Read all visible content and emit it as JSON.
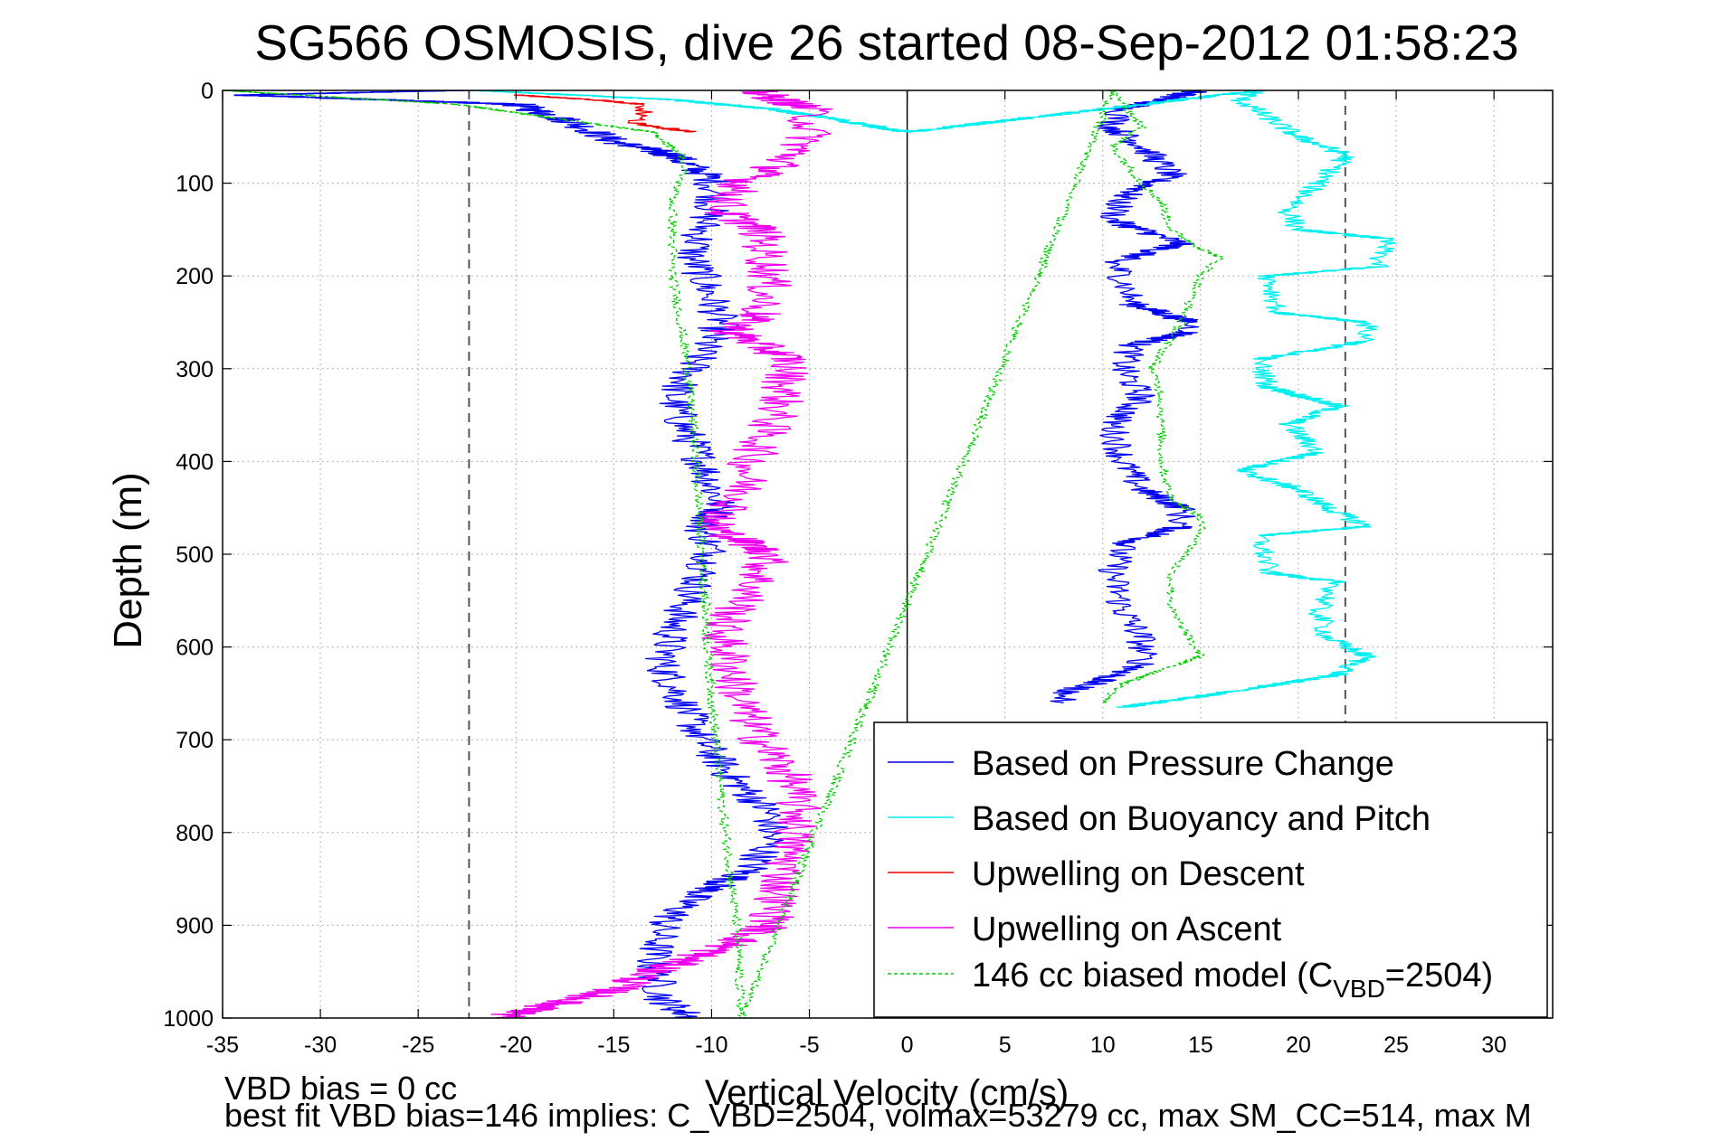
{
  "chart_data": {
    "type": "line",
    "title": "SG566 OSMOSIS, dive 26 started 08-Sep-2012 01:58:23",
    "xlabel": "Vertical Velocity (cm/s)",
    "ylabel": "Depth (m)",
    "xlim": [
      -35,
      33
    ],
    "ylim": [
      0,
      1000
    ],
    "y_reversed": true,
    "xticks": [
      -35,
      -30,
      -25,
      -20,
      -15,
      -10,
      -5,
      0,
      5,
      10,
      15,
      20,
      25,
      30
    ],
    "yticks": [
      0,
      100,
      200,
      300,
      400,
      500,
      600,
      700,
      800,
      900,
      1000
    ],
    "grid": true,
    "legend_position": "bottom-right",
    "reference_lines": [
      {
        "orientation": "vertical",
        "x": -22.4,
        "style": "dashed",
        "color": "#555555"
      },
      {
        "orientation": "vertical",
        "x": 22.4,
        "style": "dashed",
        "color": "#555555"
      },
      {
        "orientation": "vertical",
        "x": 0,
        "style": "solid",
        "color": "#000000"
      }
    ],
    "series": [
      {
        "name": "Based on Pressure Change",
        "color": "#0000ee",
        "style": "solid",
        "noise": 1.0,
        "points": [
          [
            -23,
            0
          ],
          [
            -34,
            5
          ],
          [
            -20,
            15
          ],
          [
            -17,
            35
          ],
          [
            -15,
            55
          ],
          [
            -12,
            70
          ],
          [
            -10,
            95
          ],
          [
            -9.8,
            115
          ],
          [
            -10.5,
            150
          ],
          [
            -11,
            180
          ],
          [
            -10.5,
            200
          ],
          [
            -9.5,
            250
          ],
          [
            -10.5,
            280
          ],
          [
            -11,
            300
          ],
          [
            -12,
            330
          ],
          [
            -11.5,
            360
          ],
          [
            -10.5,
            400
          ],
          [
            -9.5,
            450
          ],
          [
            -10.5,
            470
          ],
          [
            -10,
            500
          ],
          [
            -11,
            540
          ],
          [
            -12,
            580
          ],
          [
            -12.5,
            620
          ],
          [
            -11.5,
            660
          ],
          [
            -10.5,
            700
          ],
          [
            -9,
            740
          ],
          [
            -7,
            780
          ],
          [
            -7,
            810
          ],
          [
            -8,
            840
          ],
          [
            -11,
            870
          ],
          [
            -12.5,
            900
          ],
          [
            -13,
            940
          ],
          [
            -12.5,
            980
          ],
          [
            -11,
            1000
          ]
        ]
      },
      {
        "name": "Based on Pressure Change",
        "color": "#0000ee",
        "style": "solid",
        "noise": 0.8,
        "points": [
          [
            15,
            0
          ],
          [
            11,
            20
          ],
          [
            10.5,
            40
          ],
          [
            12,
            60
          ],
          [
            13.5,
            90
          ],
          [
            11,
            115
          ],
          [
            10.5,
            140
          ],
          [
            14,
            165
          ],
          [
            10.5,
            185
          ],
          [
            11,
            200
          ],
          [
            11.5,
            230
          ],
          [
            14.5,
            250
          ],
          [
            14.5,
            260
          ],
          [
            11.5,
            275
          ],
          [
            11,
            300
          ],
          [
            12,
            330
          ],
          [
            10.5,
            360
          ],
          [
            11,
            400
          ],
          [
            12,
            430
          ],
          [
            14,
            450
          ],
          [
            14,
            470
          ],
          [
            11,
            490
          ],
          [
            10.5,
            520
          ],
          [
            11,
            560
          ],
          [
            12,
            590
          ],
          [
            12,
            620
          ],
          [
            8,
            650
          ],
          [
            8,
            660
          ]
        ]
      },
      {
        "name": "Based on Pressure Change",
        "color": "#0000ee",
        "style": "solid",
        "noise": 0.5,
        "points": [
          [
            12,
            990
          ],
          [
            14,
            994
          ],
          [
            15,
            998
          ]
        ]
      },
      {
        "name": "Based on Buoyancy and Pitch",
        "color": "#00eeee",
        "style": "solid",
        "noise": 0.6,
        "points": [
          [
            -22,
            0
          ],
          [
            -12,
            10
          ],
          [
            -7,
            20
          ],
          [
            -4,
            30
          ],
          [
            0,
            45
          ],
          [
            18,
            0
          ],
          [
            17,
            10
          ],
          [
            18.5,
            30
          ],
          [
            20,
            50
          ],
          [
            22.5,
            70
          ],
          [
            21,
            100
          ],
          [
            19.5,
            130
          ],
          [
            20,
            150
          ],
          [
            24.5,
            160
          ],
          [
            24,
            190
          ],
          [
            18.5,
            200
          ],
          [
            19,
            240
          ],
          [
            23.5,
            250
          ],
          [
            23.5,
            270
          ],
          [
            18,
            290
          ],
          [
            18.5,
            320
          ],
          [
            22,
            340
          ],
          [
            19.5,
            360
          ],
          [
            21,
            390
          ],
          [
            17,
            410
          ],
          [
            20,
            430
          ],
          [
            21.5,
            450
          ],
          [
            23.5,
            470
          ],
          [
            18,
            480
          ],
          [
            18.5,
            520
          ],
          [
            22,
            530
          ],
          [
            21,
            560
          ],
          [
            21.5,
            590
          ],
          [
            23.5,
            610
          ],
          [
            22,
            630
          ],
          [
            16,
            650
          ],
          [
            11,
            665
          ]
        ]
      },
      {
        "name": "Based on Buoyancy and Pitch",
        "color": "#00eeee",
        "style": "solid",
        "noise": 0.4,
        "points": [
          [
            28,
            985
          ],
          [
            29,
            992
          ],
          [
            31,
            1000
          ]
        ]
      },
      {
        "name": "Upwelling on Descent",
        "color": "#ee0000",
        "style": "solid",
        "noise": 0.5,
        "points": [
          [
            -20,
            5
          ],
          [
            -16,
            10
          ],
          [
            -13.5,
            15
          ],
          [
            -13.5,
            25
          ],
          [
            -14,
            35
          ],
          [
            -11,
            45
          ]
        ]
      },
      {
        "name": "Upwelling on Ascent",
        "color": "#ee00ee",
        "style": "solid",
        "noise": 1.2,
        "points": [
          [
            -8,
            0
          ],
          [
            -5,
            20
          ],
          [
            -5,
            50
          ],
          [
            -6.5,
            80
          ],
          [
            -8.5,
            100
          ],
          [
            -9.5,
            130
          ],
          [
            -7.5,
            150
          ],
          [
            -7,
            200
          ],
          [
            -7.5,
            240
          ],
          [
            -9,
            260
          ],
          [
            -6,
            290
          ],
          [
            -6.5,
            340
          ],
          [
            -8,
            400
          ],
          [
            -8.5,
            440
          ],
          [
            -10,
            470
          ],
          [
            -7,
            500
          ],
          [
            -8,
            540
          ],
          [
            -9.5,
            580
          ],
          [
            -9,
            620
          ],
          [
            -8.5,
            660
          ],
          [
            -7.5,
            700
          ],
          [
            -6,
            740
          ],
          [
            -5.5,
            780
          ],
          [
            -6,
            820
          ],
          [
            -6.5,
            860
          ],
          [
            -7,
            900
          ],
          [
            -9,
            920
          ],
          [
            -13,
            950
          ],
          [
            -15,
            970
          ],
          [
            -21,
            1000
          ]
        ]
      },
      {
        "name": "146 cc biased model (C_VBD=2504)",
        "color": "#00cc00",
        "style": "dashed",
        "noise": 0.25,
        "points": [
          [
            -35,
            0
          ],
          [
            -23,
            15
          ],
          [
            -13,
            45
          ],
          [
            -11.5,
            70
          ],
          [
            -11.5,
            90
          ],
          [
            -12,
            120
          ],
          [
            -12,
            200
          ],
          [
            -11.2,
            300
          ],
          [
            -10.8,
            400
          ],
          [
            -10.5,
            500
          ],
          [
            -10.2,
            600
          ],
          [
            -9.8,
            700
          ],
          [
            -9.3,
            800
          ],
          [
            -8.7,
            900
          ],
          [
            -8.5,
            1000
          ],
          [
            10.5,
            0
          ],
          [
            12,
            40
          ],
          [
            10.5,
            60
          ],
          [
            12,
            100
          ],
          [
            13,
            120
          ],
          [
            13.5,
            150
          ],
          [
            15,
            170
          ],
          [
            16,
            180
          ],
          [
            15,
            200
          ],
          [
            14,
            250
          ],
          [
            12.5,
            300
          ],
          [
            13,
            330
          ],
          [
            13,
            400
          ],
          [
            13.5,
            440
          ],
          [
            15,
            460
          ],
          [
            15,
            480
          ],
          [
            13.5,
            520
          ],
          [
            13.5,
            560
          ],
          [
            15,
            610
          ],
          [
            11,
            640
          ],
          [
            10,
            660
          ]
        ]
      },
      {
        "name": "146 cc biased model (C_VBD=2504)",
        "color": "#00cc00",
        "style": "dashed",
        "noise": 0.2,
        "points": [
          [
            16.5,
            990
          ],
          [
            16.5,
            1000
          ]
        ]
      }
    ],
    "legend": [
      {
        "label": "Based on Pressure Change",
        "color": "#0000ee",
        "style": "solid"
      },
      {
        "label": "Based on Buoyancy and Pitch",
        "color": "#00eeee",
        "style": "solid"
      },
      {
        "label": "Upwelling on Descent",
        "color": "#ee0000",
        "style": "solid"
      },
      {
        "label": "Upwelling on Ascent",
        "color": "#ee00ee",
        "style": "solid"
      },
      {
        "label": "146 cc biased model (C",
        "sub": "VBD",
        "suffix": "=2504)",
        "color": "#00cc00",
        "style": "dashed"
      }
    ]
  },
  "footer": {
    "line1": "VBD bias = 0 cc",
    "line2": "best fit VBD bias=146 implies: C_VBD=2504, volmax=53279 cc, max SM_CC=514, max M"
  }
}
